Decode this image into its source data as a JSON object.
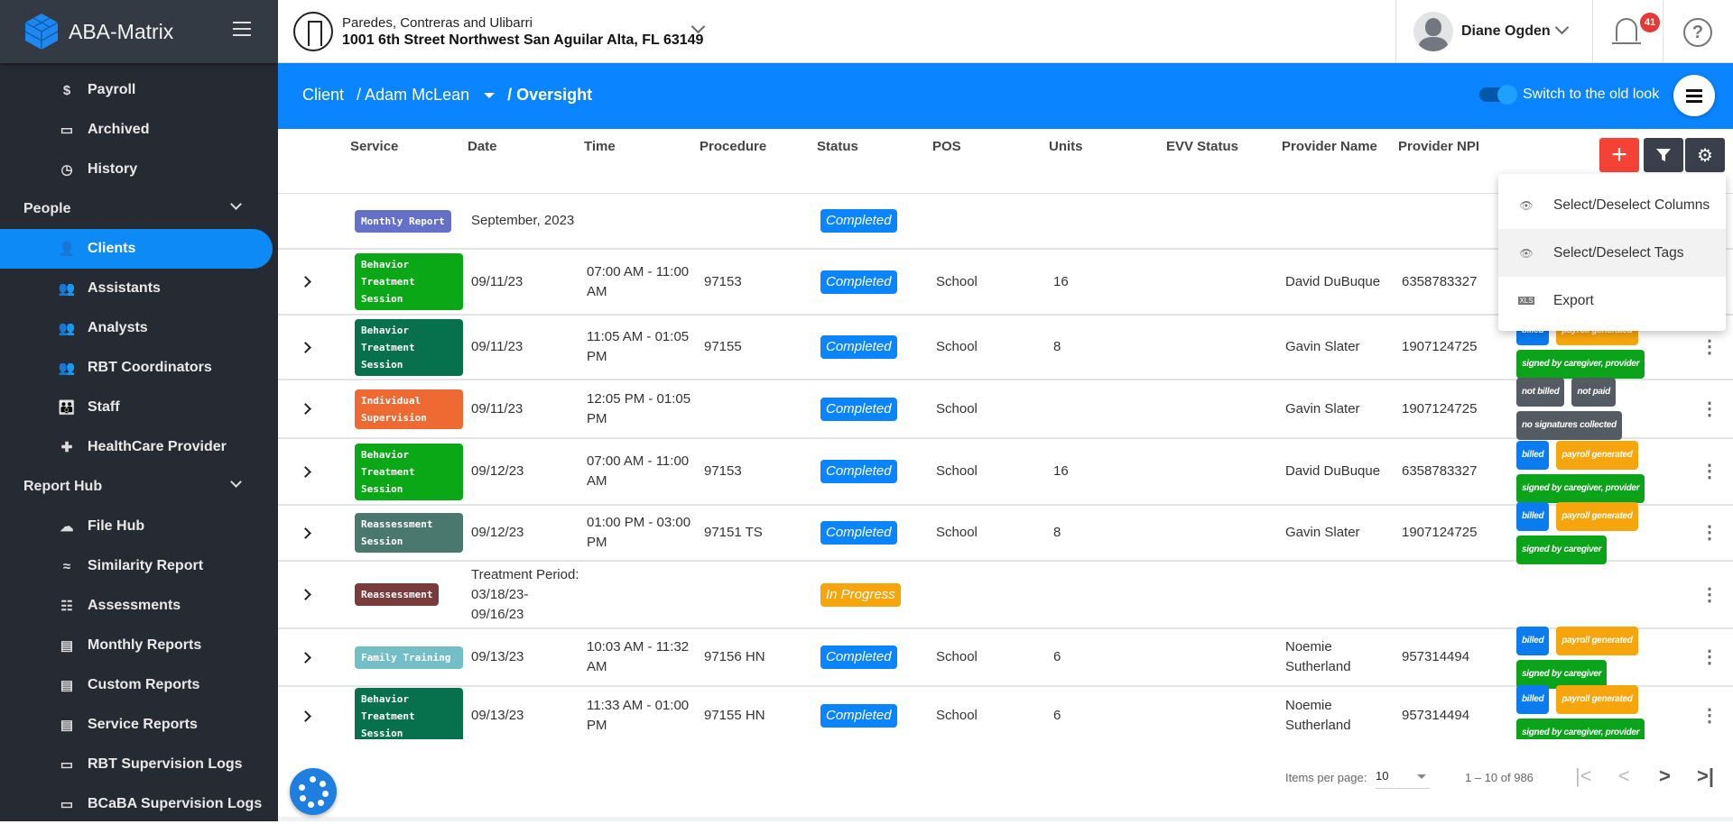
{
  "app": {
    "name": "ABA-Matrix",
    "brand_color": "#0a84ff"
  },
  "sidebar": {
    "items": [
      {
        "label": "Payroll",
        "icon": "payroll-icon",
        "glyph": "$"
      },
      {
        "label": "Archived",
        "icon": "archive-icon",
        "glyph": "▭"
      },
      {
        "label": "History",
        "icon": "history-icon",
        "glyph": "◷"
      }
    ],
    "sections": [
      {
        "label": "People",
        "items": [
          {
            "label": "Clients",
            "icon": "user-icon",
            "glyph": "👤",
            "active": true
          },
          {
            "label": "Assistants",
            "icon": "users-icon",
            "glyph": "👥"
          },
          {
            "label": "Analysts",
            "icon": "users-icon",
            "glyph": "👥"
          },
          {
            "label": "RBT Coordinators",
            "icon": "users-icon",
            "glyph": "👥"
          },
          {
            "label": "Staff",
            "icon": "staff-icon",
            "glyph": "👪"
          },
          {
            "label": "HealthCare Provider",
            "icon": "medical-kit-icon",
            "glyph": "✚"
          }
        ]
      },
      {
        "label": "Report Hub",
        "items": [
          {
            "label": "File Hub",
            "icon": "cloud-download-icon",
            "glyph": "☁"
          },
          {
            "label": "Similarity Report",
            "icon": "similarity-icon",
            "glyph": "≈"
          },
          {
            "label": "Assessments",
            "icon": "assessment-icon",
            "glyph": "☷"
          },
          {
            "label": "Monthly Reports",
            "icon": "monthly-report-icon",
            "glyph": "▤"
          },
          {
            "label": "Custom Reports",
            "icon": "custom-report-icon",
            "glyph": "▤"
          },
          {
            "label": "Service Reports",
            "icon": "service-report-icon",
            "glyph": "▤"
          },
          {
            "label": "RBT Supervision Logs",
            "icon": "monitor-chart-icon",
            "glyph": "▭"
          },
          {
            "label": "BCaBA Supervision Logs",
            "icon": "monitor-chart-icon",
            "glyph": "▭"
          }
        ]
      }
    ]
  },
  "header": {
    "org_name": "Paredes, Contreras and Ulibarri",
    "org_address": "1001 6th Street Northwest San Aguilar Alta, FL 63149",
    "user_name": "Diane Ogden",
    "notification_count": "41",
    "help_glyph": "?"
  },
  "breadcrumb": {
    "root": "Client",
    "client": "/ Adam McLean",
    "page": "/ Oversight"
  },
  "toggle": {
    "label": "Switch to the old look",
    "on": true
  },
  "table": {
    "columns": [
      "Service",
      "Date",
      "Time",
      "Procedure",
      "Status",
      "POS",
      "Units",
      "EVV Status",
      "Provider Name",
      "Provider NPI"
    ],
    "rows": [
      {
        "expand": false,
        "service": "Monthly Report",
        "service_color": "#6571c9",
        "date": "September, 2023",
        "time": "",
        "procedure": "",
        "status": "Completed",
        "pos": "",
        "units": "",
        "evv": "",
        "provider": "",
        "npi": "",
        "tags": [],
        "menu": false
      },
      {
        "expand": true,
        "service": "Behavior Treatment Session",
        "service_color": "#0aa816",
        "date": "09/11/23",
        "time": "07:00 AM - 11:00 AM",
        "procedure": "97153",
        "status": "Completed",
        "pos": "School",
        "units": "16",
        "evv": "",
        "provider": "David DuBuque",
        "npi": "6358783327",
        "tags": [],
        "menu": false
      },
      {
        "expand": true,
        "service": "Behavior Treatment Session",
        "service_color": "#07704c",
        "date": "09/11/23",
        "time": "11:05 AM - 01:05 PM",
        "procedure": "97155",
        "status": "Completed",
        "pos": "School",
        "units": "8",
        "evv": "",
        "provider": "Gavin Slater",
        "npi": "1907124725",
        "tags": [
          {
            "label": "billed",
            "color": "#0a7cf0"
          },
          {
            "label": "payroll generated",
            "color": "#f7a50c"
          },
          {
            "label": "signed by caregiver, provider",
            "color": "#0aa31a"
          }
        ],
        "menu": true
      },
      {
        "expand": true,
        "service": "Individual Supervision",
        "service_color": "#ee6a32",
        "date": "09/11/23",
        "time": "12:05 PM - 01:05 PM",
        "procedure": "",
        "status": "Completed",
        "pos": "School",
        "units": "",
        "evv": "",
        "provider": "Gavin Slater",
        "npi": "1907124725",
        "tags": [
          {
            "label": "not billed",
            "color": "#545b62"
          },
          {
            "label": "not paid",
            "color": "#545b62"
          },
          {
            "label": "no signatures collected",
            "color": "#545b62"
          }
        ],
        "menu": true
      },
      {
        "expand": true,
        "service": "Behavior Treatment Session",
        "service_color": "#0aa816",
        "date": "09/12/23",
        "time": "07:00 AM - 11:00 AM",
        "procedure": "97153",
        "status": "Completed",
        "pos": "School",
        "units": "16",
        "evv": "",
        "provider": "David DuBuque",
        "npi": "6358783327",
        "tags": [
          {
            "label": "billed",
            "color": "#0a7cf0"
          },
          {
            "label": "payroll generated",
            "color": "#f7a50c"
          },
          {
            "label": "signed by caregiver, provider",
            "color": "#0aa31a"
          }
        ],
        "menu": true
      },
      {
        "expand": true,
        "service": "Reassessment Session",
        "service_color": "#4a786e",
        "date": "09/12/23",
        "time": "01:00 PM - 03:00 PM",
        "procedure": "97151 TS",
        "status": "Completed",
        "pos": "School",
        "units": "8",
        "evv": "",
        "provider": "Gavin Slater",
        "npi": "1907124725",
        "tags": [
          {
            "label": "billed",
            "color": "#0a7cf0"
          },
          {
            "label": "payroll generated",
            "color": "#f7a50c"
          },
          {
            "label": "signed by caregiver",
            "color": "#0aa31a"
          }
        ],
        "menu": true
      },
      {
        "expand": true,
        "service": "Reassessment",
        "service_color": "#7a3b3b",
        "date": "Treatment Period: 03/18/23-09/16/23",
        "time": "",
        "procedure": "",
        "status": "In Progress",
        "pos": "",
        "units": "",
        "evv": "",
        "provider": "",
        "npi": "",
        "tags": [],
        "menu": true
      },
      {
        "expand": true,
        "service": "Family Training",
        "service_color": "#74bfc7",
        "date": "09/13/23",
        "time": "10:03 AM - 11:32 AM",
        "procedure": "97156 HN",
        "status": "Completed",
        "pos": "School",
        "units": "6",
        "evv": "",
        "provider": "Noemie Sutherland",
        "npi": "957314494",
        "tags": [
          {
            "label": "billed",
            "color": "#0a7cf0"
          },
          {
            "label": "payroll generated",
            "color": "#f7a50c"
          },
          {
            "label": "signed by caregiver",
            "color": "#0aa31a"
          }
        ],
        "menu": true
      },
      {
        "expand": true,
        "service": "Behavior Treatment Session",
        "service_color": "#07704c",
        "date": "09/13/23",
        "time": "11:33 AM - 01:00 PM",
        "procedure": "97155 HN",
        "status": "Completed",
        "pos": "School",
        "units": "6",
        "evv": "",
        "provider": "Noemie Sutherland",
        "npi": "957314494",
        "tags": [
          {
            "label": "billed",
            "color": "#0a7cf0"
          },
          {
            "label": "payroll generated",
            "color": "#f7a50c"
          },
          {
            "label": "signed by caregiver, provider",
            "color": "#0aa31a"
          }
        ],
        "menu": true
      }
    ],
    "status_colors": {
      "Completed": "#0a84ff",
      "In Progress": "#f7a50c"
    }
  },
  "toolbar": {
    "add_glyph": "+",
    "add_color": "#f44336",
    "filter_color": "#3a3f4b",
    "settings_color": "#3a3f4b"
  },
  "settings_menu": {
    "items": [
      {
        "label": "Select/Deselect Columns",
        "icon": "eye-icon",
        "glyph": "👁"
      },
      {
        "label": "Select/Deselect Tags",
        "icon": "eye-icon",
        "glyph": "👁",
        "hover": true
      },
      {
        "label": "Export",
        "icon": "xls-file-icon",
        "glyph": "XLS"
      }
    ]
  },
  "pagination": {
    "items_label": "Items per page:",
    "page_size": "10",
    "range": "1 – 10 of 986",
    "first": "|<",
    "prev": "<",
    "next": ">",
    "last": ">|"
  }
}
